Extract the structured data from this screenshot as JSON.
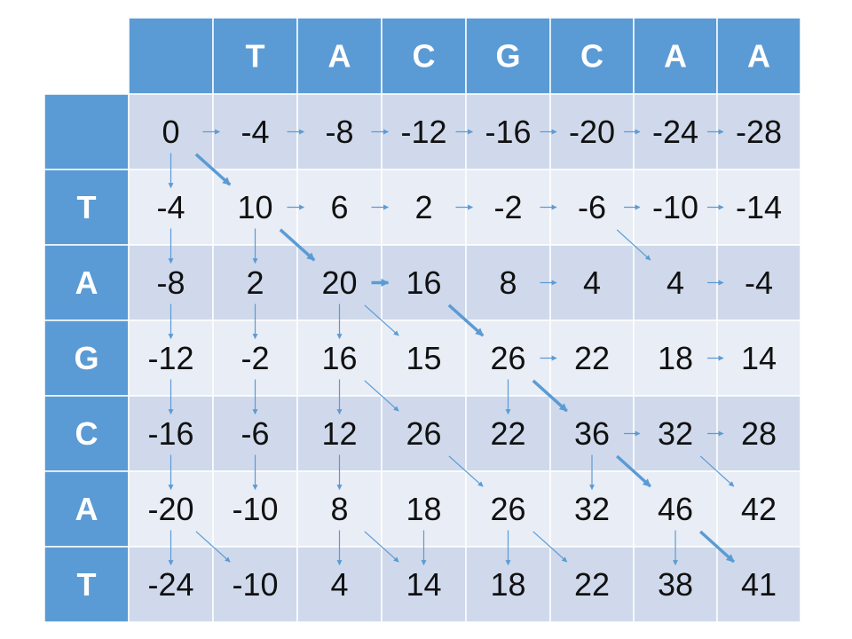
{
  "sequences": {
    "top": [
      "T",
      "A",
      "C",
      "G",
      "C",
      "A",
      "A"
    ],
    "left": [
      "T",
      "A",
      "G",
      "C",
      "A",
      "T"
    ]
  },
  "matrix": [
    [
      "0",
      "-4",
      "-8",
      "-12",
      "-16",
      "-20",
      "-24",
      "-28"
    ],
    [
      "-4",
      "10",
      "6",
      "2",
      "-2",
      "-6",
      "-10",
      "-14"
    ],
    [
      "-8",
      "2",
      "20",
      "16",
      "8",
      "4",
      "4",
      "-4"
    ],
    [
      "-12",
      "-2",
      "16",
      "15",
      "26",
      "22",
      "18",
      "14"
    ],
    [
      "-16",
      "-6",
      "12",
      "26",
      "22",
      "36",
      "32",
      "28"
    ],
    [
      "-20",
      "-10",
      "8",
      "18",
      "26",
      "32",
      "46",
      "42"
    ],
    [
      "-24",
      "-10",
      "4",
      "14",
      "18",
      "22",
      "38",
      "41"
    ]
  ],
  "pointers": [
    [
      0,
      0,
      0,
      1,
      false
    ],
    [
      0,
      1,
      0,
      2,
      false
    ],
    [
      0,
      2,
      0,
      3,
      false
    ],
    [
      0,
      3,
      0,
      4,
      false
    ],
    [
      0,
      4,
      0,
      5,
      false
    ],
    [
      0,
      5,
      0,
      6,
      false
    ],
    [
      0,
      6,
      0,
      7,
      false
    ],
    [
      0,
      0,
      1,
      0,
      false
    ],
    [
      0,
      0,
      1,
      1,
      true
    ],
    [
      1,
      0,
      2,
      0,
      false
    ],
    [
      1,
      1,
      1,
      2,
      false
    ],
    [
      1,
      2,
      1,
      3,
      false
    ],
    [
      1,
      3,
      1,
      4,
      false
    ],
    [
      1,
      4,
      1,
      5,
      false
    ],
    [
      1,
      5,
      1,
      6,
      false
    ],
    [
      1,
      6,
      1,
      7,
      false
    ],
    [
      1,
      1,
      2,
      1,
      false
    ],
    [
      1,
      1,
      2,
      2,
      true
    ],
    [
      1,
      5,
      2,
      6,
      false
    ],
    [
      2,
      0,
      3,
      0,
      false
    ],
    [
      2,
      1,
      3,
      1,
      false
    ],
    [
      2,
      2,
      2,
      3,
      true
    ],
    [
      2,
      2,
      3,
      2,
      false
    ],
    [
      2,
      2,
      3,
      3,
      false
    ],
    [
      2,
      3,
      3,
      4,
      true
    ],
    [
      2,
      4,
      2,
      5,
      false
    ],
    [
      2,
      6,
      2,
      7,
      false
    ],
    [
      3,
      0,
      4,
      0,
      false
    ],
    [
      3,
      1,
      4,
      1,
      false
    ],
    [
      3,
      2,
      4,
      2,
      false
    ],
    [
      3,
      2,
      4,
      3,
      false
    ],
    [
      3,
      4,
      4,
      4,
      false
    ],
    [
      3,
      4,
      3,
      5,
      false
    ],
    [
      3,
      6,
      3,
      7,
      false
    ],
    [
      3,
      4,
      4,
      5,
      true
    ],
    [
      4,
      0,
      5,
      0,
      false
    ],
    [
      4,
      1,
      5,
      1,
      false
    ],
    [
      4,
      2,
      5,
      2,
      false
    ],
    [
      4,
      3,
      5,
      4,
      false
    ],
    [
      4,
      5,
      5,
      5,
      false
    ],
    [
      4,
      5,
      4,
      6,
      false
    ],
    [
      4,
      6,
      4,
      7,
      false
    ],
    [
      4,
      5,
      5,
      6,
      true
    ],
    [
      4,
      6,
      5,
      7,
      false
    ],
    [
      5,
      0,
      6,
      0,
      false
    ],
    [
      5,
      0,
      6,
      1,
      false
    ],
    [
      5,
      2,
      6,
      2,
      false
    ],
    [
      5,
      2,
      6,
      3,
      false
    ],
    [
      5,
      3,
      6,
      3,
      false
    ],
    [
      5,
      4,
      6,
      4,
      false
    ],
    [
      5,
      4,
      6,
      5,
      false
    ],
    [
      5,
      6,
      6,
      6,
      false
    ],
    [
      5,
      6,
      6,
      7,
      true
    ]
  ],
  "colors": {
    "header": "#5b9bd5",
    "row_dark": "#cfd9eb",
    "row_light": "#e9edf5",
    "grid_line": "#ffffff",
    "arrow": "#5b9bd5"
  }
}
